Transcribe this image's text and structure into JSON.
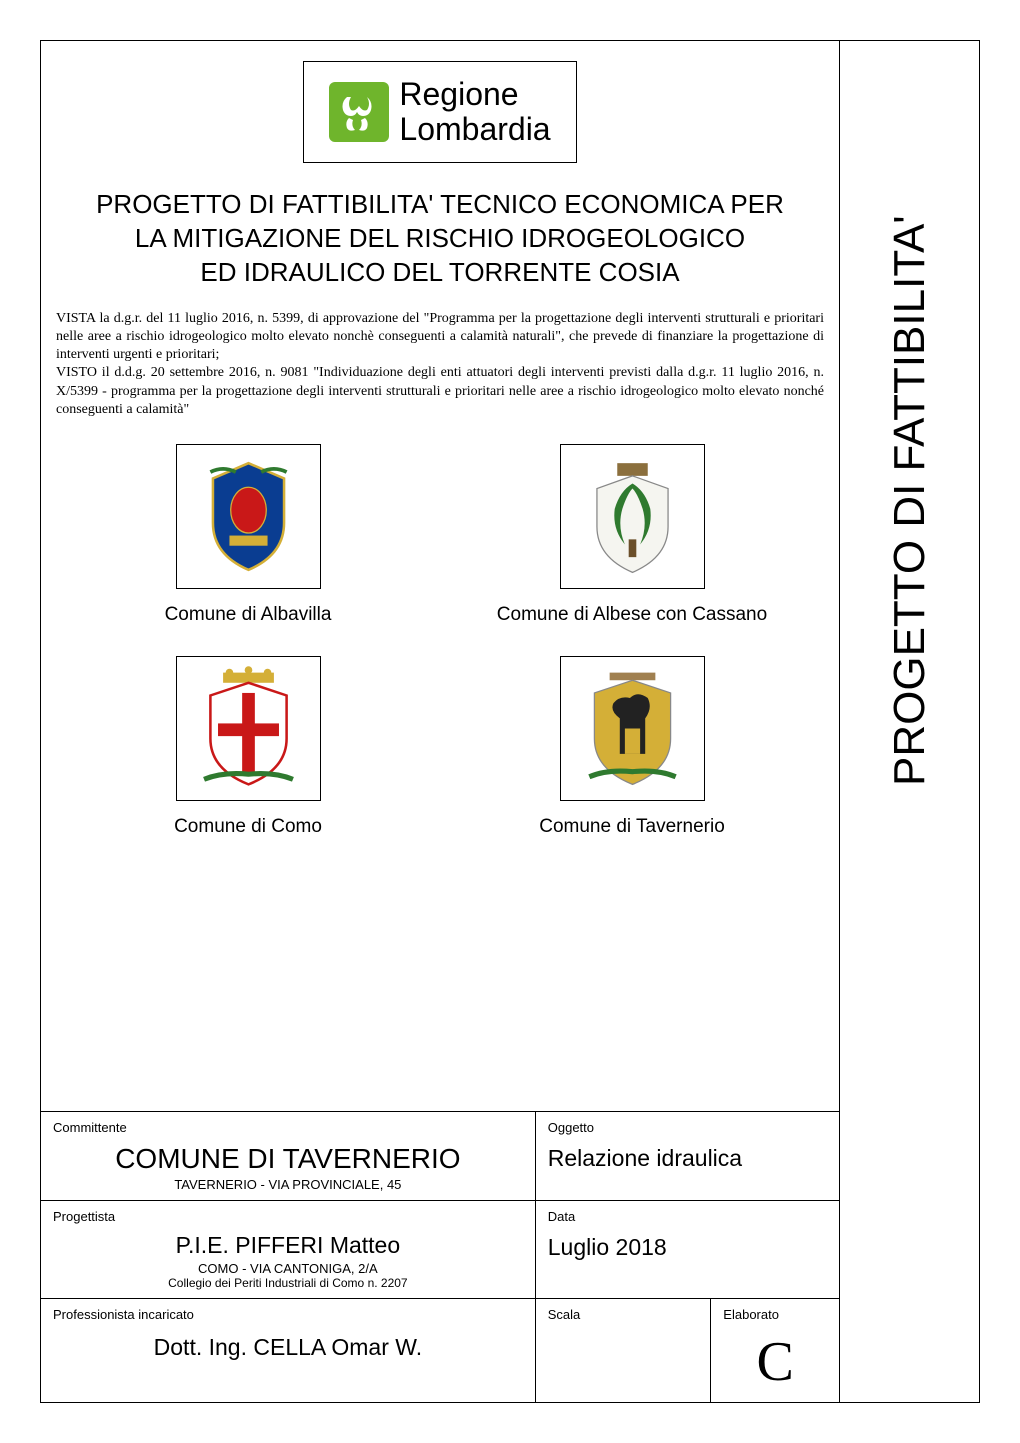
{
  "sidebar": {
    "vertical_title": "PROGETTO DI FATTIBILITA'"
  },
  "logo": {
    "line1": "Regione",
    "line2": "Lombardia",
    "icon_bg": "#6fb52c",
    "icon_fg": "#ffffff"
  },
  "title": {
    "line1": "PROGETTO DI FATTIBILITA' TECNICO ECONOMICA PER",
    "line2": "LA MITIGAZIONE DEL RISCHIO IDROGEOLOGICO",
    "line3": "ED IDRAULICO DEL TORRENTE COSIA"
  },
  "legal": {
    "text": "VISTA la d.g.r. del 11 luglio 2016, n. 5399, di approvazione del \"Programma per la progettazione degli interventi strutturali e prioritari nelle aree a rischio idrogeologico molto elevato nonchè conseguenti a calamità naturali\", che prevede di finanziare la progettazione di interventi urgenti e prioritari;\nVISTO il d.d.g. 20 settembre 2016, n. 9081 \"Individuazione degli enti attuatori degli interventi previsti dalla d.g.r. 11 luglio 2016, n. X/5399 - programma per la progettazione degli interventi strutturali e prioritari nelle aree a rischio idrogeologico molto elevato nonché conseguenti a calamità\""
  },
  "comuni": [
    {
      "label": "Comune di Albavilla",
      "shield_primary": "#0a3d91",
      "shield_accent": "#d4af37",
      "shield_secondary": "#c91818"
    },
    {
      "label": "Comune di Albese con Cassano",
      "shield_primary": "#2f7a2f",
      "shield_accent": "#d4af37",
      "shield_secondary": "#2f7a2f"
    },
    {
      "label": "Comune di Como",
      "shield_primary": "#ffffff",
      "shield_accent": "#c91818",
      "shield_secondary": "#c91818"
    },
    {
      "label": "Comune di Tavernerio",
      "shield_primary": "#d4af37",
      "shield_accent": "#2f7a2f",
      "shield_secondary": "#222222"
    }
  ],
  "info": {
    "committente": {
      "label": "Committente",
      "value": "COMUNE DI TAVERNERIO",
      "sub": "TAVERNERIO - VIA PROVINCIALE, 45"
    },
    "oggetto": {
      "label": "Oggetto",
      "value": "Relazione idraulica"
    },
    "progettista": {
      "label": "Progettista",
      "value": "P.I.E. PIFFERI Matteo",
      "sub1": "COMO - VIA CANTONIGA, 2/A",
      "sub2": "Collegio dei Periti Industriali di Como n. 2207"
    },
    "data": {
      "label": "Data",
      "value": "Luglio 2018"
    },
    "professionista": {
      "label": "Professionista incaricato",
      "value": "Dott. Ing. CELLA Omar W."
    },
    "scala": {
      "label": "Scala",
      "value": ""
    },
    "elaborato": {
      "label": "Elaborato",
      "value": "C"
    }
  },
  "colors": {
    "page_bg": "#ffffff",
    "border": "#000000",
    "text": "#000000"
  }
}
